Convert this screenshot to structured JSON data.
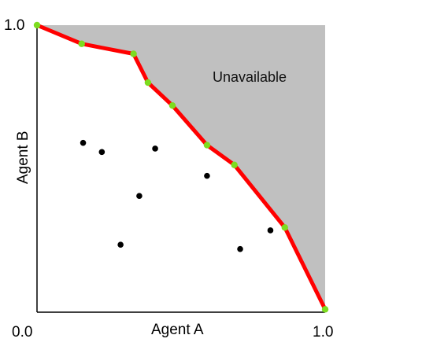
{
  "chart_data": {
    "type": "scatter",
    "xlabel": "Agent A",
    "ylabel": "Agent B",
    "xlim": [
      0,
      1
    ],
    "ylim": [
      0,
      1
    ],
    "x_tick_labels": [
      "0.0",
      "1.0"
    ],
    "y_tick_labels": [
      "1.0"
    ],
    "grid": false,
    "region_label": "Unavailable",
    "colors": {
      "unavailable_region": "#c0c0c0",
      "frontier_line": "#ff0000",
      "frontier_points": "#7ddc1f",
      "interior_points": "#000000",
      "axes": "#000000"
    },
    "frontier": [
      {
        "x": 0.0,
        "y": 1.0
      },
      {
        "x": 0.155,
        "y": 0.935
      },
      {
        "x": 0.335,
        "y": 0.9
      },
      {
        "x": 0.385,
        "y": 0.8
      },
      {
        "x": 0.47,
        "y": 0.72
      },
      {
        "x": 0.59,
        "y": 0.582
      },
      {
        "x": 0.685,
        "y": 0.513
      },
      {
        "x": 0.86,
        "y": 0.295
      },
      {
        "x": 1.0,
        "y": 0.01
      }
    ],
    "interior_points": [
      {
        "x": 0.16,
        "y": 0.59
      },
      {
        "x": 0.225,
        "y": 0.558
      },
      {
        "x": 0.41,
        "y": 0.57
      },
      {
        "x": 0.355,
        "y": 0.405
      },
      {
        "x": 0.59,
        "y": 0.475
      },
      {
        "x": 0.29,
        "y": 0.235
      },
      {
        "x": 0.705,
        "y": 0.22
      },
      {
        "x": 0.81,
        "y": 0.285
      }
    ]
  }
}
